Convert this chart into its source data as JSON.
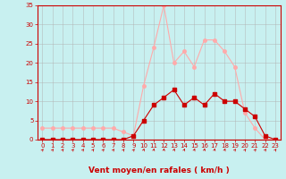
{
  "xlabel": "Vent moyen/en rafales ( km/h )",
  "background_color": "#c8f0f0",
  "grid_color": "#b0b0b0",
  "x": [
    0,
    1,
    2,
    3,
    4,
    5,
    6,
    7,
    8,
    9,
    10,
    11,
    12,
    13,
    14,
    15,
    16,
    17,
    18,
    19,
    20,
    21,
    22,
    23
  ],
  "vent_moyen": [
    0,
    0,
    0,
    0,
    0,
    0,
    0,
    0,
    0,
    1,
    5,
    9,
    11,
    13,
    9,
    11,
    9,
    12,
    10,
    10,
    8,
    6,
    1,
    0
  ],
  "rafales": [
    3,
    3,
    3,
    3,
    3,
    3,
    3,
    3,
    2,
    1,
    14,
    24,
    35,
    20,
    23,
    19,
    26,
    26,
    23,
    19,
    7,
    3,
    0,
    0
  ],
  "line_color_moyen": "#cc0000",
  "line_color_rafales": "#ffaaaa",
  "marker_size": 2.5,
  "ylim": [
    0,
    35
  ],
  "xlim": [
    -0.5,
    23.5
  ],
  "yticks": [
    0,
    5,
    10,
    15,
    20,
    25,
    30,
    35
  ],
  "xticks": [
    0,
    1,
    2,
    3,
    4,
    5,
    6,
    7,
    8,
    9,
    10,
    11,
    12,
    13,
    14,
    15,
    16,
    17,
    18,
    19,
    20,
    21,
    22,
    23
  ],
  "tick_fontsize": 5,
  "xlabel_fontsize": 6.5,
  "spine_color": "#cc0000",
  "arrow_angles": [
    45,
    45,
    45,
    45,
    45,
    45,
    45,
    45,
    45,
    45,
    60,
    70,
    70,
    60,
    60,
    60,
    70,
    70,
    60,
    45,
    45,
    45,
    45,
    45
  ]
}
